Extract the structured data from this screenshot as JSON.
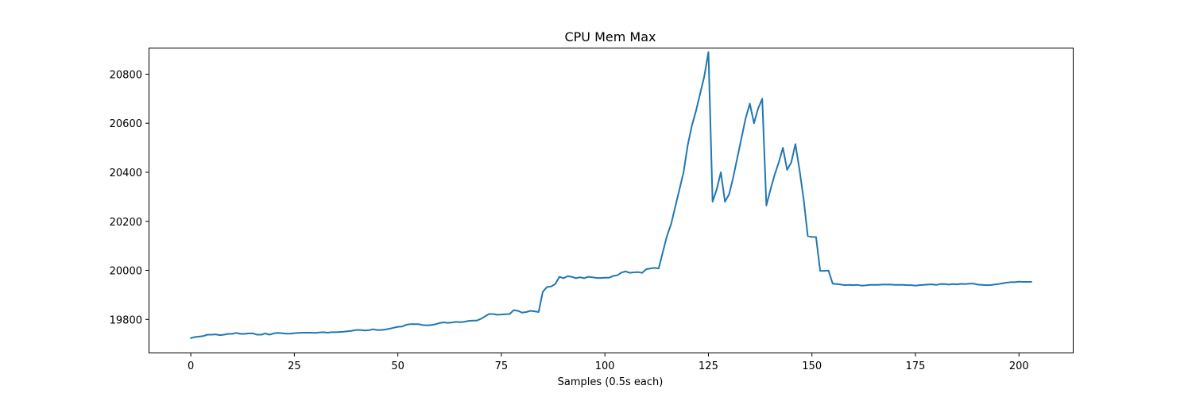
{
  "chart_data": {
    "type": "line",
    "title": "CPU Mem Max",
    "xlabel": "Samples (0.5s each)",
    "ylabel": "",
    "xlim": [
      -10,
      213
    ],
    "ylim": [
      19665,
      20905
    ],
    "xticks": [
      0,
      25,
      50,
      75,
      100,
      125,
      150,
      175,
      200
    ],
    "yticks": [
      19800,
      20000,
      20200,
      20400,
      20600,
      20800
    ],
    "grid": false,
    "legend": "none",
    "series_color": "#1f77b4",
    "series": [
      {
        "values": [
          19724,
          19728,
          19730,
          19732,
          19738,
          19738,
          19739,
          19736,
          19738,
          19741,
          19741,
          19745,
          19741,
          19741,
          19743,
          19743,
          19738,
          19738,
          19743,
          19738,
          19743,
          19745,
          19744,
          19742,
          19742,
          19744,
          19745,
          19746,
          19746,
          19746,
          19745,
          19747,
          19748,
          19746,
          19748,
          19748,
          19749,
          19750,
          19752,
          19754,
          19757,
          19757,
          19755,
          19756,
          19760,
          19757,
          19757,
          19759,
          19762,
          19766,
          19770,
          19771,
          19778,
          19781,
          19781,
          19781,
          19777,
          19776,
          19777,
          19780,
          19785,
          19788,
          19786,
          19787,
          19790,
          19789,
          19790,
          19794,
          19795,
          19795,
          19802,
          19812,
          19822,
          19822,
          19819,
          19820,
          19821,
          19822,
          19838,
          19835,
          19828,
          19830,
          19835,
          19833,
          19830,
          19912,
          19932,
          19934,
          19944,
          19974,
          19968,
          19976,
          19974,
          19968,
          19972,
          19968,
          19974,
          19972,
          19969,
          19969,
          19970,
          19970,
          19977,
          19980,
          19991,
          19996,
          19990,
          19992,
          19993,
          19990,
          20005,
          20008,
          20010,
          20008,
          20075,
          20140,
          20190,
          20260,
          20330,
          20400,
          20510,
          20590,
          20650,
          20720,
          20790,
          20890,
          20280,
          20330,
          20400,
          20280,
          20310,
          20380,
          20460,
          20540,
          20620,
          20680,
          20600,
          20660,
          20700,
          20265,
          20330,
          20390,
          20440,
          20500,
          20410,
          20440,
          20515,
          20410,
          20290,
          20140,
          20136,
          20136,
          19998,
          19998,
          19999,
          19946,
          19944,
          19942,
          19940,
          19941,
          19940,
          19941,
          19938,
          19939,
          19941,
          19941,
          19941,
          19942,
          19942,
          19942,
          19941,
          19941,
          19941,
          19940,
          19940,
          19938,
          19940,
          19941,
          19942,
          19943,
          19941,
          19944,
          19944,
          19942,
          19944,
          19943,
          19945,
          19944,
          19946,
          19946,
          19942,
          19941,
          19940,
          19940,
          19942,
          19944,
          19947,
          19950,
          19952,
          19952,
          19954,
          19953,
          19953,
          19953
        ]
      }
    ]
  }
}
